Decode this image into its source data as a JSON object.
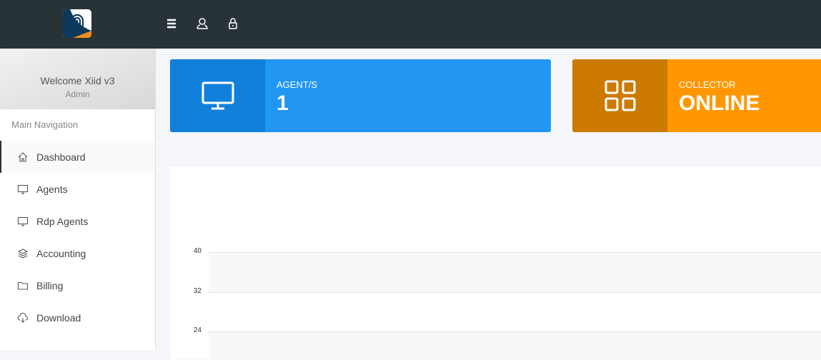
{
  "topbar": {
    "icons": [
      "hamburger-menu-icon",
      "user-icon",
      "lock-icon"
    ]
  },
  "sidebar": {
    "welcome": "Welcome Xiid v3",
    "role": "Admin",
    "section_title": "Main Navigation",
    "items": [
      {
        "label": "Dashboard",
        "icon": "home-icon",
        "active": true
      },
      {
        "label": "Agents",
        "icon": "monitor-icon"
      },
      {
        "label": "Rdp Agents",
        "icon": "monitor-icon"
      },
      {
        "label": "Accounting",
        "icon": "layers-icon"
      },
      {
        "label": "Billing",
        "icon": "folder-icon"
      },
      {
        "label": "Download",
        "icon": "cloud-download-icon"
      }
    ]
  },
  "cards": [
    {
      "label": "AGENT/S",
      "value": "1",
      "icon": "monitor-icon",
      "color": "#2196f3",
      "icon_bg": "#1180db"
    },
    {
      "label": "COLLECTOR",
      "value": "ONLINE",
      "icon": "grid-icon",
      "color": "#ff9800",
      "icon_bg": "#cc7a00"
    }
  ],
  "chart": {
    "y_ticks": [
      "40",
      "32",
      "24"
    ]
  }
}
